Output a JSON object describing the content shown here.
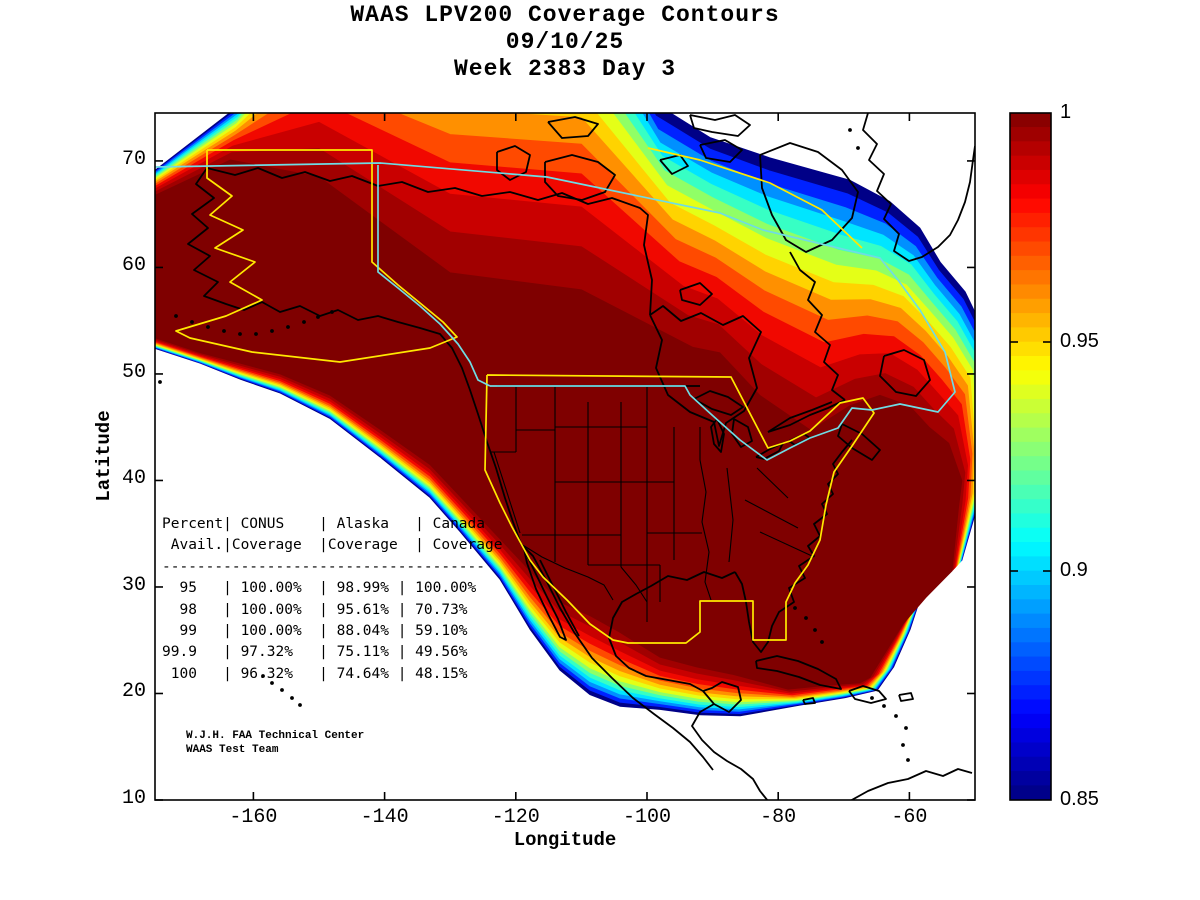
{
  "title": {
    "line1": "WAAS LPV200 Coverage Contours",
    "line2": "09/10/25",
    "line3": "Week 2383 Day 3"
  },
  "axes": {
    "xlabel": "Longitude",
    "ylabel": "Latitude",
    "xlim": [
      -175,
      -50
    ],
    "ylim": [
      10,
      74.5
    ],
    "xticks": [
      -160,
      -140,
      -120,
      -100,
      -80,
      -60
    ],
    "yticks": [
      10,
      20,
      30,
      40,
      50,
      60,
      70
    ]
  },
  "colorbar": {
    "min": 0.85,
    "max": 1.0,
    "steps": 48,
    "ticks": [
      {
        "label": "1",
        "value": 1.0
      },
      {
        "label": "0.95",
        "value": 0.95
      },
      {
        "label": "0.9",
        "value": 0.9
      },
      {
        "label": "0.85",
        "value": 0.85
      }
    ]
  },
  "coverage_table": {
    "header_lines": [
      "Percent| CONUS    | Alaska   | Canada",
      " Avail.|Coverage  |Coverage  | Coverage"
    ],
    "separator": "-------------------------------------",
    "columns": [
      "Percent Avail.",
      "CONUS Coverage",
      "Alaska Coverage",
      "Canada Coverage"
    ],
    "rows": [
      [
        "95",
        "100.00%",
        "98.99%",
        "100.00%"
      ],
      [
        "98",
        "100.00%",
        "95.61%",
        "70.73%"
      ],
      [
        "99",
        "100.00%",
        "88.04%",
        "59.10%"
      ],
      [
        "99.9",
        "97.32%",
        "75.11%",
        "49.56%"
      ],
      [
        "100",
        "96.32%",
        "74.64%",
        "48.15%"
      ]
    ]
  },
  "credit": {
    "line1": "W.J.H. FAA Technical Center",
    "line2": "WAAS Test Team"
  },
  "colors": {
    "background": "#ffffff",
    "frame": "#000000",
    "coastline": "#000000",
    "conus_alaska_boundary": "#ffe800",
    "canada_boundary": "#6fdce4",
    "text": "#000000"
  },
  "chart_data": {
    "type": "heatmap",
    "subtype": "filled-contour-coverage-map",
    "title": "WAAS LPV200 Coverage Contours 09/10/25 Week 2383 Day 3",
    "xlabel": "Longitude",
    "ylabel": "Latitude",
    "xlim": [
      -175,
      -50
    ],
    "ylim": [
      10,
      74.5
    ],
    "colormap": "jet",
    "clim": [
      0.85,
      1.0
    ],
    "colorbar_ticks": [
      1.0,
      0.95,
      0.9,
      0.85
    ],
    "contour_levels": [
      0.845,
      0.855,
      0.863,
      0.872,
      0.881,
      0.89,
      0.9,
      0.912,
      0.925,
      0.938,
      0.952,
      0.966,
      0.982,
      1.0
    ],
    "band_colors": [
      "#000087",
      "#0022ff",
      "#0090ff",
      "#00e5ff",
      "#37ffc4",
      "#90ff66",
      "#e4ff17",
      "#ffd300",
      "#ff9000",
      "#ff4a00",
      "#f10800",
      "#c90000",
      "#a10000",
      "#7f0000"
    ],
    "interp_t": [
      0,
      0.055,
      0.11,
      0.165,
      0.22,
      0.28,
      0.34,
      0.41,
      0.48,
      0.56,
      0.65,
      0.75,
      0.87,
      1.0
    ],
    "outer_boundary_lonlat": [
      [
        -178,
        67.7
      ],
      [
        -162,
        75.3
      ],
      [
        -150,
        89
      ],
      [
        -130,
        89
      ],
      [
        -110,
        89
      ],
      [
        -99,
        75.5
      ],
      [
        -90.4,
        72.2
      ],
      [
        -81.3,
        70.3
      ],
      [
        -69.1,
        68.2
      ],
      [
        -63,
        66.2
      ],
      [
        -58.4,
        63.7
      ],
      [
        -55.3,
        60.5
      ],
      [
        -51.5,
        57.7
      ],
      [
        -48.5,
        53.9
      ],
      [
        -48.5,
        45.7
      ],
      [
        -48.5,
        40
      ],
      [
        -52,
        32.5
      ],
      [
        -55.8,
        31.2
      ],
      [
        -58.4,
        28.8
      ],
      [
        -59.9,
        26
      ],
      [
        -62.4,
        22.5
      ],
      [
        -64.9,
        20.3
      ],
      [
        -69.8,
        19.6
      ],
      [
        -76.7,
        18.9
      ],
      [
        -85.8,
        17.9
      ],
      [
        -91.9,
        18
      ],
      [
        -98,
        18.5
      ],
      [
        -104.1,
        18.8
      ],
      [
        -108.7,
        19.9
      ],
      [
        -113.3,
        22.2
      ],
      [
        -117.8,
        26
      ],
      [
        -122.4,
        30.7
      ],
      [
        -128.5,
        35.2
      ],
      [
        -133.1,
        38.4
      ],
      [
        -140.7,
        42.2
      ],
      [
        -148.3,
        45.8
      ],
      [
        -155.9,
        48.2
      ],
      [
        -162,
        49.5
      ],
      [
        -168.1,
        51
      ],
      [
        -178,
        53
      ]
    ],
    "core_boundary_lonlat": [
      [
        -178,
        65.9
      ],
      [
        -163.5,
        70.1
      ],
      [
        -150,
        68.5
      ],
      [
        -130,
        59.5
      ],
      [
        -110,
        57.9
      ],
      [
        -93,
        52.5
      ],
      [
        -88.9,
        52
      ],
      [
        -82.8,
        48
      ],
      [
        -75,
        44.7
      ],
      [
        -69.1,
        47
      ],
      [
        -64.5,
        48
      ],
      [
        -60,
        47
      ],
      [
        -57,
        45
      ],
      [
        -54,
        43.5
      ],
      [
        -52,
        40
      ],
      [
        -52.5,
        37.5
      ],
      [
        -53.5,
        31.5
      ],
      [
        -57.5,
        29
      ],
      [
        -61,
        26.5
      ],
      [
        -63,
        24.5
      ],
      [
        -66,
        21.5
      ],
      [
        -67.5,
        21
      ],
      [
        -72,
        20.8
      ],
      [
        -78.5,
        20.4
      ],
      [
        -87,
        21.8
      ],
      [
        -92.5,
        22.5
      ],
      [
        -98,
        23.4
      ],
      [
        -104.3,
        25.8
      ],
      [
        -108.7,
        27.3
      ],
      [
        -113.3,
        28.6
      ],
      [
        -117.8,
        31.5
      ],
      [
        -122.4,
        34.5
      ],
      [
        -128.5,
        38.5
      ],
      [
        -133.1,
        41.5
      ],
      [
        -140.7,
        44.8
      ],
      [
        -148.3,
        48
      ],
      [
        -155.9,
        50
      ],
      [
        -162,
        51
      ],
      [
        -168.1,
        52
      ],
      [
        -178,
        54
      ]
    ],
    "table": {
      "type": "table",
      "columns": [
        "Percent Avail.",
        "CONUS Coverage",
        "Alaska Coverage",
        "Canada Coverage"
      ],
      "rows": [
        [
          "95",
          "100.00%",
          "98.99%",
          "100.00%"
        ],
        [
          "98",
          "100.00%",
          "95.61%",
          "70.73%"
        ],
        [
          "99",
          "100.00%",
          "88.04%",
          "59.10%"
        ],
        [
          "99.9",
          "97.32%",
          "75.11%",
          "49.56%"
        ],
        [
          "100",
          "96.32%",
          "74.64%",
          "48.15%"
        ]
      ]
    }
  }
}
